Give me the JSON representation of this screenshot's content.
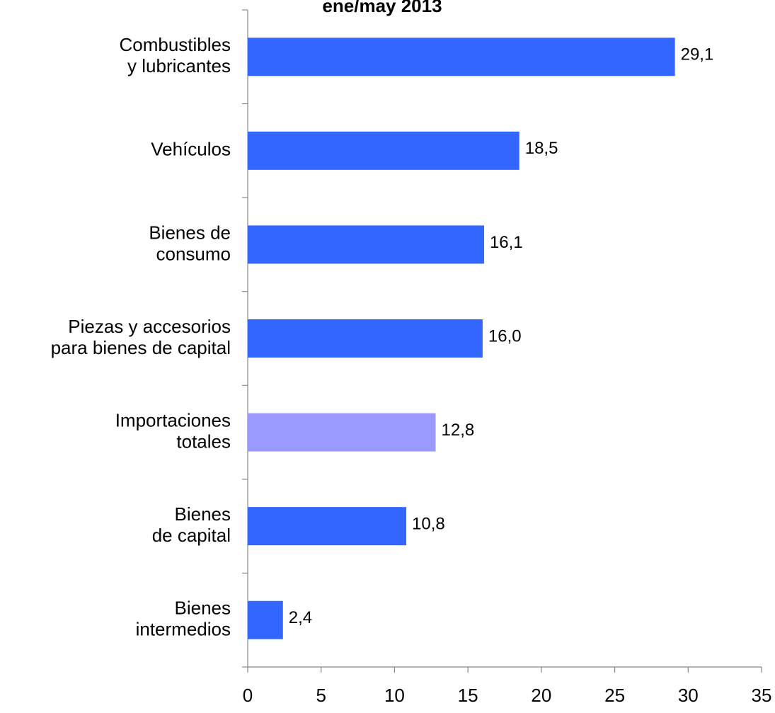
{
  "chart_data": {
    "type": "barh",
    "title": "ene/may 2013",
    "categories": [
      [
        "Combustibles",
        "y lubricantes"
      ],
      [
        "Vehículos"
      ],
      [
        "Bienes de",
        "consumo"
      ],
      [
        "Piezas y accesorios",
        "para bienes de capital"
      ],
      [
        "Importaciones",
        "totales"
      ],
      [
        "Bienes",
        "de capital"
      ],
      [
        "Bienes",
        "intermedios"
      ]
    ],
    "values": [
      29.1,
      18.5,
      16.1,
      16.0,
      12.8,
      10.8,
      2.4
    ],
    "value_labels": [
      "29,1",
      "18,5",
      "16,1",
      "16,0",
      "12,8",
      "10,8",
      "2,4"
    ],
    "colors": [
      "#3366ff",
      "#3366ff",
      "#3366ff",
      "#3366ff",
      "#9999ff",
      "#3366ff",
      "#3366ff"
    ],
    "xlim": [
      0,
      35
    ],
    "xticks": [
      0,
      5,
      10,
      15,
      20,
      25,
      30,
      35
    ],
    "grid": false
  }
}
